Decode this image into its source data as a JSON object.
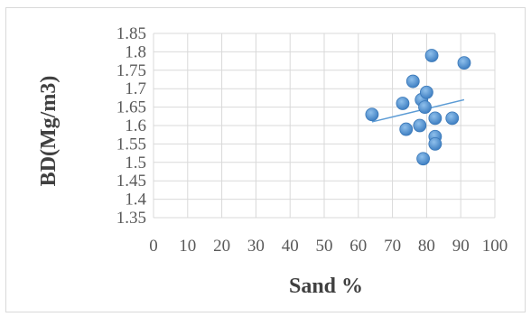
{
  "chart_data": {
    "type": "scatter",
    "title": "",
    "xlabel": "Sand %",
    "ylabel": "BD(Mg/m3)",
    "xlim": [
      0,
      100
    ],
    "ylim": [
      1.35,
      1.85
    ],
    "x_ticks": [
      "0",
      "10",
      "20",
      "30",
      "40",
      "50",
      "60",
      "70",
      "80",
      "90",
      "100"
    ],
    "y_ticks": [
      "1.35",
      "1.4",
      "1.45",
      "1.5",
      "1.55",
      "1.6",
      "1.65",
      "1.7",
      "1.75",
      "1.8",
      "1.85"
    ],
    "grid": true,
    "legend": "none",
    "series": [
      {
        "points": [
          {
            "x": 64,
            "y": 1.63
          },
          {
            "x": 73,
            "y": 1.66
          },
          {
            "x": 74,
            "y": 1.59
          },
          {
            "x": 76,
            "y": 1.72
          },
          {
            "x": 78,
            "y": 1.6
          },
          {
            "x": 78.5,
            "y": 1.67
          },
          {
            "x": 79,
            "y": 1.51
          },
          {
            "x": 79.5,
            "y": 1.65
          },
          {
            "x": 80,
            "y": 1.69
          },
          {
            "x": 81.5,
            "y": 1.79
          },
          {
            "x": 82.5,
            "y": 1.62
          },
          {
            "x": 82.5,
            "y": 1.57
          },
          {
            "x": 82.5,
            "y": 1.55
          },
          {
            "x": 87.5,
            "y": 1.62
          },
          {
            "x": 91,
            "y": 1.77
          }
        ],
        "color": "#5b9bd5"
      }
    ],
    "trendline": {
      "type": "linear",
      "x_range": [
        64,
        91
      ],
      "y_start": 1.61,
      "y_end": 1.67,
      "color": "#5b9bd5"
    }
  }
}
